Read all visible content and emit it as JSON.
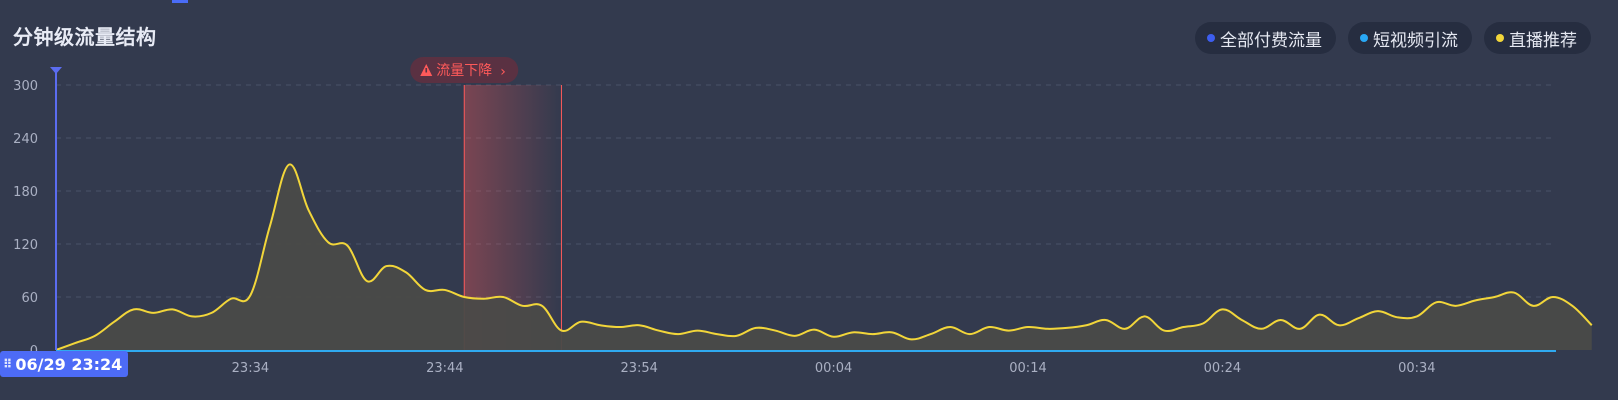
{
  "panel": {
    "title": "分钟级流量结构",
    "tab_indicator_color": "#4a6cf7"
  },
  "legend": [
    {
      "label": "全部付费流量",
      "color": "#3d5ef0"
    },
    {
      "label": "短视频引流",
      "color": "#29a8f5"
    },
    {
      "label": "直播推荐",
      "color": "#f2d63a"
    }
  ],
  "alert": {
    "label": "流量下降",
    "icon": "warning-triangle-icon",
    "chevron": "›",
    "start_time": "23:45",
    "end_time": "23:50",
    "color": "#ff5a5a"
  },
  "cursor": {
    "label": "06/29 23:24",
    "icon": "drag-grip-icon",
    "color": "#4d6bf6"
  },
  "chart_data": {
    "type": "area",
    "x_unit": "minute",
    "x_start": "23:24",
    "x_ticks": [
      "23:34",
      "23:44",
      "23:54",
      "00:04",
      "00:14",
      "00:24",
      "00:34"
    ],
    "y_ticks": [
      0,
      60,
      120,
      180,
      240,
      300
    ],
    "ylim": [
      0,
      300
    ],
    "grid": true,
    "series": [
      {
        "name": "直播推荐",
        "color": "#f2d63a",
        "x": [
          0,
          1,
          2,
          3,
          4,
          5,
          6,
          7,
          8,
          9,
          10,
          11,
          12,
          13,
          14,
          15,
          16,
          17,
          18,
          19,
          20,
          21,
          22,
          23,
          24,
          25,
          26,
          27,
          28,
          29,
          30,
          31,
          32,
          33,
          34,
          35,
          36,
          37,
          38,
          39,
          40,
          41,
          42,
          43,
          44,
          45,
          46,
          47,
          48,
          49,
          50,
          51,
          52,
          53,
          54,
          55,
          56,
          57,
          58,
          59,
          60,
          61,
          62,
          63,
          64,
          65,
          66,
          67,
          68,
          69,
          70,
          71,
          72,
          73,
          74,
          75,
          76,
          77,
          78,
          79
        ],
        "values": [
          0,
          8,
          16,
          32,
          46,
          42,
          46,
          38,
          42,
          58,
          62,
          140,
          210,
          158,
          122,
          118,
          78,
          95,
          88,
          68,
          68,
          60,
          58,
          60,
          50,
          50,
          22,
          32,
          28,
          26,
          28,
          22,
          18,
          22,
          18,
          16,
          25,
          22,
          16,
          23,
          15,
          20,
          18,
          20,
          12,
          18,
          26,
          18,
          26,
          22,
          26,
          24,
          25,
          28,
          34,
          24,
          38,
          22,
          26,
          30,
          46,
          34,
          24,
          34,
          24,
          40,
          28,
          36,
          44,
          37,
          38,
          54,
          50,
          56,
          60,
          65,
          50,
          60,
          50,
          28
        ]
      }
    ]
  }
}
